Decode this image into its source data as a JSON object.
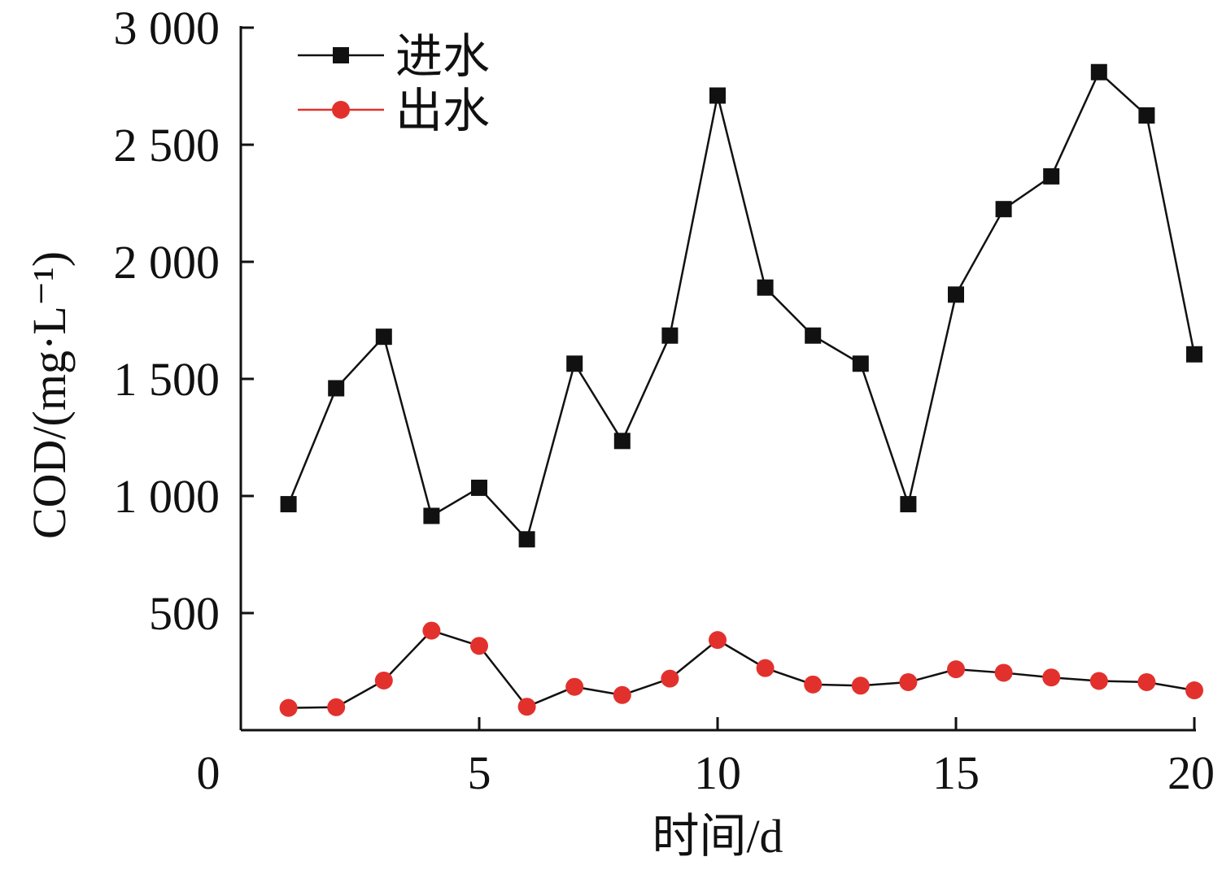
{
  "chart_data": {
    "type": "line",
    "xlabel": "时间/d",
    "ylabel": "COD/(mg·L⁻¹)",
    "xlim": [
      0,
      20
    ],
    "ylim": [
      0,
      3000
    ],
    "x_ticks": [
      0,
      5,
      10,
      15,
      20
    ],
    "x_tick_labels": [
      "0",
      "5",
      "10",
      "15",
      "20"
    ],
    "y_ticks": [
      500,
      1000,
      1500,
      2000,
      2500,
      3000
    ],
    "y_tick_labels": [
      "500",
      "1 000",
      "1 500",
      "2 000",
      "2 500",
      "3 000"
    ],
    "grid": false,
    "legend_position": "top-left",
    "x": [
      1,
      2,
      3,
      4,
      5,
      6,
      7,
      8,
      9,
      10,
      11,
      12,
      13,
      14,
      15,
      16,
      17,
      18,
      19,
      20
    ],
    "series": [
      {
        "name": "进水",
        "color": "#111111",
        "marker": "square",
        "values": [
          965,
          1460,
          1680,
          915,
          1035,
          815,
          1565,
          1235,
          1685,
          2710,
          1890,
          1685,
          1565,
          965,
          1860,
          2225,
          2365,
          2810,
          2625,
          1605
        ]
      },
      {
        "name": "出水",
        "color": "#e2312d",
        "marker": "circle",
        "values": [
          95,
          98,
          212,
          425,
          360,
          100,
          185,
          150,
          220,
          385,
          265,
          195,
          190,
          205,
          260,
          245,
          225,
          210,
          205,
          170
        ]
      }
    ]
  }
}
